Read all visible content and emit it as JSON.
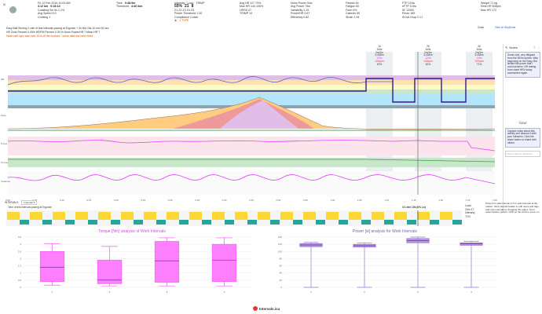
{
  "header": {
    "date_line": "Fri 12 Feb 2016  10:03 AM",
    "distance": "3.12 km",
    "duration": "0:18:14",
    "col1_rows": [
      "Coasting 0m 5s  1.1%",
      "Avg Speed 9.9",
      "Cruising 1"
    ],
    "time_label": "Time",
    "time_value": "0:48:9m",
    "threshold_label": "Threshold",
    "threshold_value": "4:40 /km",
    "intensity_label": "Intensity",
    "intensity_value": "55%",
    "load_label": "Load",
    "load_value": "21",
    "trimp_label": "TRIMP",
    "trimp_value": "8",
    "zones_line": "Z1 Z2 Z3 Z4 Z5",
    "power_line": "Power Threshold 1.30",
    "compliance_label": "Compliance  Coach",
    "tags": "1 TYPE",
    "hr_avg": "Avg HR 117 70%",
    "hr_max": "Max HR 144 105%",
    "decoupling": "HRSS 47",
    "trimp2": "TRIMP 14",
    "np": "Norm Power 94w",
    "avg_power": "Avg Power 79w",
    "vi": "Variability 1.19",
    "power_hr": "Power/HR 0.67",
    "efficiency": "Efficiency 0.82",
    "fitness": "Fitness 64",
    "fatigue": "Fatigue 60",
    "form": "Form 6%",
    "calories": "Calories 69",
    "strain": "Strain 1.94",
    "ftp": "FTP 115w",
    "eftp": "eFTP 115w",
    "wprime": "W' 12000",
    "pmax": "Pmax 185",
    "w_drop": "W bal Drop 2.1J",
    "weight": "Weight 71 kg",
    "rest_hr": "Rest HR 60bpm",
    "max_hr": "Max HR 172",
    "view_link": "View on StryDome",
    "zoom_label": "Zoom"
  },
  "info": {
    "description": "Easy Ball Stroling 1 rate of test intervals pacing at Ergorize + 3x 60s 15s 10 min 30 sec",
    "hr_zones": "HR Zone Percent 0.00%   HR/FM Percent 0.00 %   Norm Power/HR 7   Mean HR 7",
    "warning": "Heart rate sync was over 10% off the workout - some data has been fixed"
  },
  "intervals_head": [
    {
      "title": "1b",
      "lines": [
        "3x5s",
        "2m/2m",
        "3:43/km",
        "3x3m",
        "120w",
        "124bpm",
        "62%",
        "38%",
        "2"
      ]
    },
    {
      "title": "2b",
      "lines": [
        "3x5s",
        "2m/2m",
        "3:43/km",
        "3x3m",
        "122w",
        "132bpm",
        "62%",
        "28%",
        "3"
      ]
    },
    {
      "title": "3b",
      "lines": [
        "3x5s",
        "2m/2m",
        "3:43/km",
        "3x3m",
        "140w",
        "137bpm",
        "71%",
        "36%",
        "4"
      ]
    }
  ],
  "chart_left_labels": [
    "HR",
    "Pace",
    "Power",
    "Torque",
    "Cadence"
  ],
  "time_ticks": [
    "0:00",
    "0:05",
    "0:10",
    "0:15",
    "0:20",
    "0:25",
    "0:30",
    "0:35",
    "0:40",
    "0:45",
    "0:50",
    "0:55",
    "1:00",
    "1:05",
    "1:10",
    "1:15",
    "1:20",
    "1:25",
    "1:30"
  ],
  "toolbar": {
    "section": "INTERVALS",
    "dropdown": "Intervals ▾",
    "caption": "Time of test intervals pacing at Ergorize",
    "interval_readout": "3:1 min  10s (6% Lo)",
    "load_label": "Load",
    "load_value": "20m 17",
    "intensity_label": "Intensity",
    "intensity_value": "71%",
    "hint": "Press D to add interval or A to split intervals at the marker. Click interval header to edit name and tags. Add new intervals by dragging the edges. Hit to select feature pointer. Click on the chart to zoom on."
  },
  "notes": {
    "title": "Notes",
    "body": "Some cold, very fatigued from the 500m sprints. Was beginning on the Easy. But limited the power that I could achieve. HR resting from sheet HRV today somewhere again.",
    "today_label": "TODAY",
    "capture_text": "Capture notes about this activity and discuss it with your followers. Click the share button to share with others.",
    "comment_placeholder": "Type a note or comment"
  },
  "chart_data": [
    {
      "type": "box",
      "title": "Torque [Nm] analysis of Work Intervals",
      "categories": [
        "1",
        "2",
        "3",
        "4"
      ],
      "ylim": [
        0,
        3.5
      ],
      "yticks": [
        "0",
        "0.5",
        "1",
        "1.5",
        "2",
        "2.5",
        "3",
        "3.5"
      ],
      "boxes": [
        {
          "min": 0.15,
          "q1": 0.4,
          "median": 1.4,
          "q3": 2.5,
          "max": 3.05
        },
        {
          "min": 0.1,
          "q1": 0.25,
          "median": 0.5,
          "q3": 1.9,
          "max": 2.85
        },
        {
          "min": 0.1,
          "q1": 0.35,
          "median": 1.85,
          "q3": 3.2,
          "max": 3.45
        },
        {
          "min": 0.1,
          "q1": 0.4,
          "median": 1.9,
          "q3": 3.0,
          "max": 3.45
        }
      ],
      "color": "#ff55ff"
    },
    {
      "type": "box",
      "title": "Power [w] analysis for Work Intervals",
      "categories": [
        "1",
        "2",
        "3",
        "4"
      ],
      "ylim": [
        0,
        140
      ],
      "yticks": [
        "0",
        "20",
        "40",
        "60",
        "80",
        "100",
        "120",
        "140"
      ],
      "boxes": [
        {
          "min": 0,
          "q1": 113,
          "median": 118,
          "q3": 122,
          "max": 125
        },
        {
          "min": 0,
          "q1": 112,
          "median": 116,
          "q3": 120,
          "max": 124
        },
        {
          "min": 0,
          "q1": 124,
          "median": 130,
          "q3": 136,
          "max": 140
        },
        {
          "min": 0,
          "q1": 117,
          "median": 121,
          "q3": 124,
          "max": 128
        }
      ],
      "color": "#9575cd"
    }
  ],
  "footer": {
    "brand": "Intervals.icu"
  },
  "colors": {
    "hr_line": "#5c6bc0",
    "power": "#e040fb",
    "pace_fill": "#ffb74d",
    "accent": "#e65100",
    "link": "#1565c0"
  }
}
